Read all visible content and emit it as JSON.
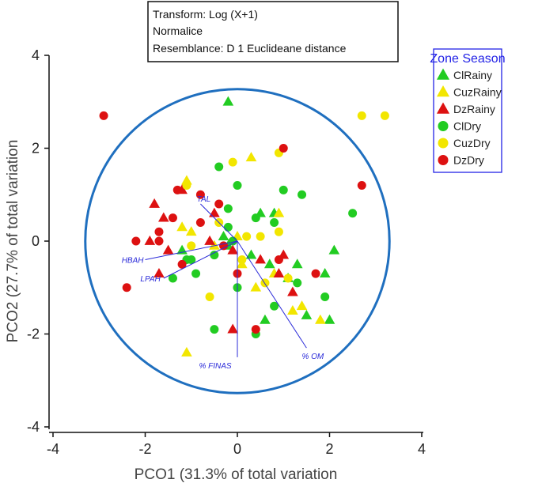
{
  "chart_data": {
    "type": "scatter",
    "xlabel": "PCO1 (31.3% of total variation",
    "ylabel": "PCO2 (27.7% of total variation",
    "xlim": [
      -4,
      4
    ],
    "ylim": [
      -4,
      4
    ],
    "xticks": [
      "-4",
      "-2",
      "0",
      "2",
      "4"
    ],
    "yticks": [
      "-4",
      "-2",
      "0",
      "2",
      "4"
    ],
    "info_lines": [
      "Transform: Log (X+1)",
      "Normalice",
      "Resemblance: D 1 Euclideane distance"
    ],
    "legend_title": "Zone Season",
    "circle": {
      "center": [
        0,
        0
      ],
      "radius": 3.3,
      "color": "#1f6fbf"
    },
    "colors": {
      "green": "#22cc22",
      "yellow": "#f2e600",
      "red": "#dd1111",
      "vector": "#2b2bd9"
    },
    "series": [
      {
        "name": "ClRainy",
        "marker": "triangle",
        "color": "#22cc22",
        "points": [
          [
            -0.2,
            3.0
          ],
          [
            0.5,
            0.6
          ],
          [
            0.8,
            0.6
          ],
          [
            -1.2,
            -0.2
          ],
          [
            -0.2,
            -0.1
          ],
          [
            0.3,
            -0.3
          ],
          [
            0.7,
            -0.5
          ],
          [
            1.3,
            -0.5
          ],
          [
            1.5,
            -1.6
          ],
          [
            1.9,
            -0.7
          ],
          [
            2.0,
            -1.7
          ],
          [
            2.1,
            -0.2
          ],
          [
            0.6,
            -1.7
          ],
          [
            1.1,
            -0.8
          ],
          [
            -0.3,
            0.1
          ]
        ]
      },
      {
        "name": "CuzRainy",
        "marker": "triangle",
        "color": "#f2e600",
        "points": [
          [
            -1.1,
            1.3
          ],
          [
            -1.2,
            0.3
          ],
          [
            -1.0,
            0.2
          ],
          [
            0.3,
            1.8
          ],
          [
            0.9,
            0.6
          ],
          [
            0.8,
            -0.7
          ],
          [
            1.2,
            -1.5
          ],
          [
            1.4,
            -1.4
          ],
          [
            1.8,
            -1.7
          ],
          [
            -1.1,
            -2.4
          ],
          [
            0.1,
            -0.5
          ],
          [
            0.0,
            0.1
          ],
          [
            -0.5,
            -0.1
          ],
          [
            0.4,
            -1.0
          ]
        ]
      },
      {
        "name": "DzRainy",
        "marker": "triangle",
        "color": "#dd1111",
        "points": [
          [
            -1.6,
            0.5
          ],
          [
            -1.8,
            0.8
          ],
          [
            -1.9,
            0.0
          ],
          [
            -1.5,
            -0.2
          ],
          [
            -1.2,
            1.1
          ],
          [
            -0.5,
            0.6
          ],
          [
            -0.6,
            0.0
          ],
          [
            -0.1,
            -0.2
          ],
          [
            -0.1,
            -1.9
          ],
          [
            0.5,
            -0.4
          ],
          [
            0.9,
            -0.7
          ],
          [
            1.2,
            -1.1
          ],
          [
            1.0,
            -0.3
          ],
          [
            -1.7,
            -0.7
          ]
        ]
      },
      {
        "name": "ClDry",
        "marker": "circle",
        "color": "#22cc22",
        "points": [
          [
            -0.4,
            1.6
          ],
          [
            0.0,
            1.2
          ],
          [
            -0.2,
            0.7
          ],
          [
            1.0,
            1.1
          ],
          [
            1.4,
            1.0
          ],
          [
            2.5,
            0.6
          ],
          [
            0.4,
            0.5
          ],
          [
            0.8,
            0.4
          ],
          [
            -0.2,
            0.3
          ],
          [
            -0.5,
            -0.3
          ],
          [
            -1.0,
            -0.4
          ],
          [
            -1.4,
            -0.8
          ],
          [
            -0.9,
            -0.7
          ],
          [
            0.0,
            -1.0
          ],
          [
            0.8,
            -1.4
          ],
          [
            0.4,
            -2.0
          ],
          [
            1.3,
            -0.9
          ],
          [
            1.9,
            -1.2
          ],
          [
            -0.5,
            -1.9
          ],
          [
            -1.1,
            -0.4
          ],
          [
            -0.1,
            0.0
          ]
        ]
      },
      {
        "name": "CuzDry",
        "marker": "circle",
        "color": "#f2e600",
        "points": [
          [
            2.7,
            2.7
          ],
          [
            3.2,
            2.7
          ],
          [
            -0.1,
            1.7
          ],
          [
            0.9,
            1.9
          ],
          [
            -1.1,
            1.2
          ],
          [
            -0.4,
            0.4
          ],
          [
            -1.0,
            -0.1
          ],
          [
            0.2,
            0.1
          ],
          [
            0.9,
            0.2
          ],
          [
            1.1,
            -0.8
          ],
          [
            -0.6,
            -1.2
          ],
          [
            0.6,
            -0.9
          ],
          [
            0.1,
            -0.4
          ],
          [
            0.5,
            0.1
          ]
        ]
      },
      {
        "name": "DzDry",
        "marker": "circle",
        "color": "#dd1111",
        "points": [
          [
            -2.9,
            2.7
          ],
          [
            1.0,
            2.0
          ],
          [
            2.7,
            1.2
          ],
          [
            -1.3,
            1.1
          ],
          [
            -0.8,
            1.0
          ],
          [
            -1.4,
            0.5
          ],
          [
            -1.7,
            0.2
          ],
          [
            -2.2,
            0.0
          ],
          [
            -1.7,
            0.0
          ],
          [
            -0.3,
            -0.1
          ],
          [
            0.9,
            -0.4
          ],
          [
            1.7,
            -0.7
          ],
          [
            -0.8,
            0.4
          ],
          [
            -2.4,
            -1.0
          ],
          [
            -1.2,
            -0.5
          ],
          [
            -0.4,
            0.8
          ],
          [
            0.0,
            -0.7
          ],
          [
            0.4,
            -1.9
          ]
        ]
      }
    ],
    "vectors": [
      {
        "label": "TAL",
        "end": [
          -0.8,
          0.8
        ]
      },
      {
        "label": "HBAH",
        "end": [
          -2.0,
          -0.4
        ]
      },
      {
        "label": "LPAH",
        "end": [
          -1.6,
          -0.8
        ]
      },
      {
        "label": "% FINAS",
        "end": [
          0.0,
          -2.5
        ]
      },
      {
        "label": "% OM",
        "end": [
          1.5,
          -2.3
        ]
      }
    ]
  }
}
